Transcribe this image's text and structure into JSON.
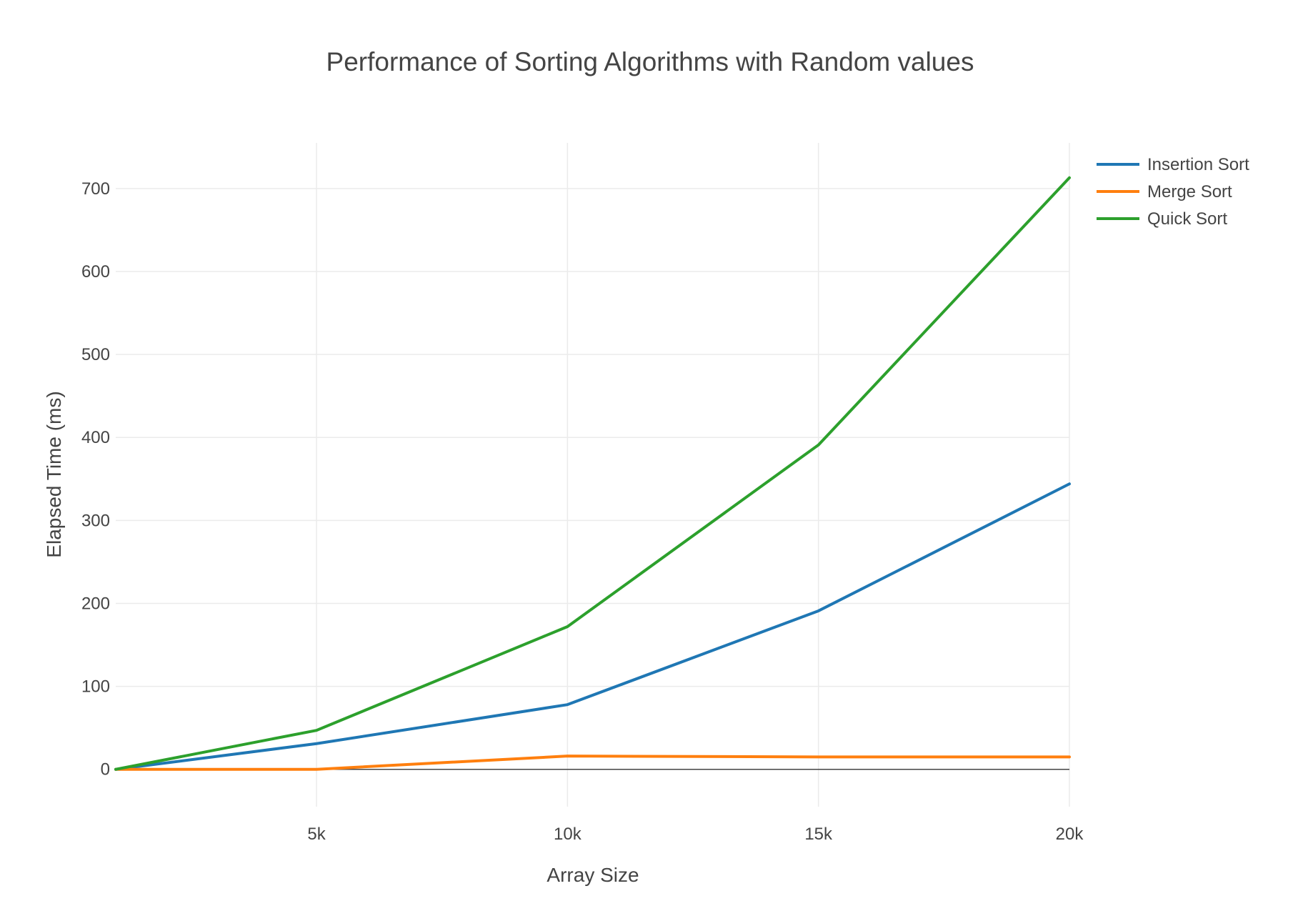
{
  "chart_data": {
    "type": "line",
    "title": "Performance of Sorting Algorithms with Random values",
    "xlabel": "Array Size",
    "ylabel": "Elapsed Time (ms)",
    "x": [
      1000,
      5000,
      10000,
      15000,
      20000
    ],
    "xlim": [
      1000,
      20000
    ],
    "ylim": [
      -45,
      755
    ],
    "x_ticks": [
      5000,
      10000,
      15000,
      20000
    ],
    "x_tick_labels": [
      "5k",
      "10k",
      "15k",
      "20k"
    ],
    "y_ticks": [
      0,
      100,
      200,
      300,
      400,
      500,
      600,
      700
    ],
    "y_tick_labels": [
      "0",
      "100",
      "200",
      "300",
      "400",
      "500",
      "600",
      "700"
    ],
    "grid": true,
    "legend_position": "top-right",
    "series": [
      {
        "name": "Insertion Sort",
        "color": "#1f77b4",
        "values": [
          0,
          31,
          78,
          191,
          344
        ]
      },
      {
        "name": "Merge Sort",
        "color": "#ff7f0e",
        "values": [
          0,
          0,
          16,
          15,
          15
        ]
      },
      {
        "name": "Quick Sort",
        "color": "#2ca02c",
        "values": [
          0,
          47,
          172,
          391,
          713
        ]
      }
    ]
  }
}
